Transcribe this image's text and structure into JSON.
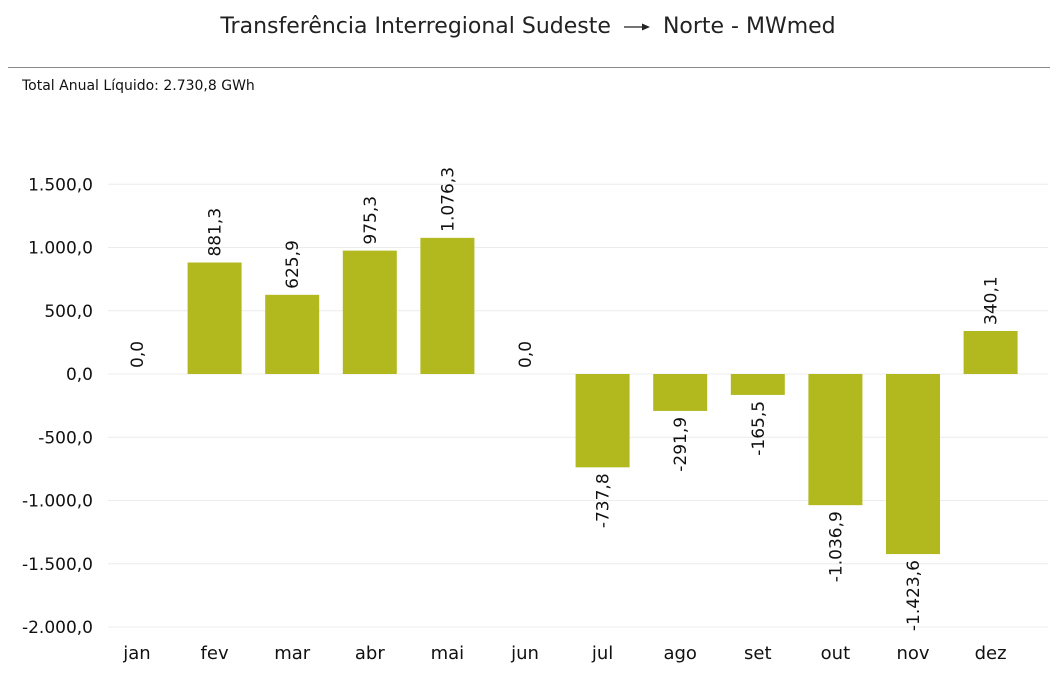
{
  "header": {
    "title_left": "Transferência Interregional Sudeste",
    "title_right": "Norte - MWmed",
    "subtitle": "Total Anual Líquido: 2.730,8 GWh"
  },
  "colors": {
    "bar": "#b1b91f",
    "grid": "#ececec",
    "divider": "#8a8a8a"
  },
  "chart_data": {
    "type": "bar",
    "categories": [
      "jan",
      "fev",
      "mar",
      "abr",
      "mai",
      "jun",
      "jul",
      "ago",
      "set",
      "out",
      "nov",
      "dez"
    ],
    "values": [
      0.0,
      881.3,
      625.9,
      975.3,
      1076.3,
      0.0,
      -737.8,
      -291.9,
      -165.5,
      -1036.9,
      -1423.6,
      340.1
    ],
    "data_labels": [
      "0,0",
      "881,3",
      "625,9",
      "975,3",
      "1.076,3",
      "0,0",
      "-737,8",
      "-291,9",
      "-165,5",
      "-1.036,9",
      "-1.423,6",
      "340,1"
    ],
    "yticks": [
      1500,
      1000,
      500,
      0,
      -500,
      -1000,
      -1500,
      -2000
    ],
    "ytick_labels": [
      "1.500,0",
      "1.000,0",
      "500,0",
      "0,0",
      "-500,0",
      "-1.000,0",
      "-1.500,0",
      "-2.000,0"
    ],
    "ylim": [
      -2000,
      1500
    ],
    "grid": true,
    "legend": "none"
  }
}
